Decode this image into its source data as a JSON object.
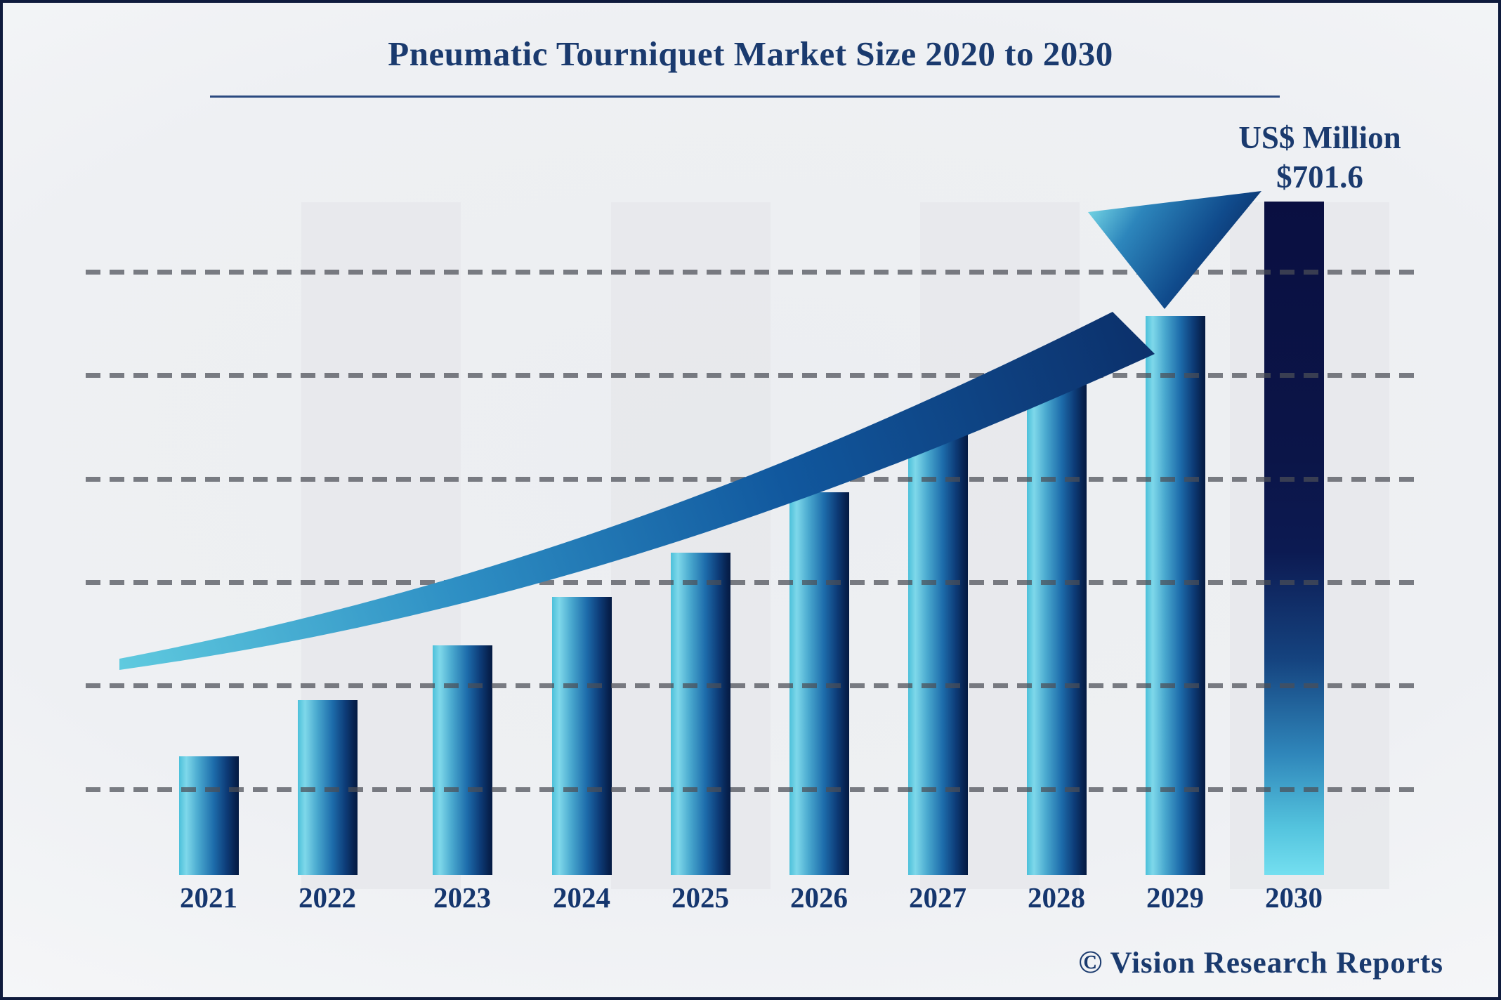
{
  "title": "Pneumatic Tourniquet Market Size 2020 to 2030",
  "annotation": {
    "unit": "US$ Million",
    "value": "$701.6"
  },
  "watermark": {
    "symbol": "©",
    "text": "Vision Research Reports"
  },
  "colors": {
    "navy_text": "#1a3a6e",
    "label_navy": "#15366e",
    "border_navy": "#0f1b3d",
    "rule_navy": "#2b4a80",
    "bar_cyan": "#7ed8ea",
    "bar_dark": "#041a42",
    "band_gray": "#e6e7eb",
    "grid_gray": "#9fa2a9",
    "arrow_tail_cyan": "#5fcadf",
    "arrow_head_navy": "#0a2458"
  },
  "chart_data": {
    "type": "bar",
    "title": "Pneumatic Tourniquet Market Size 2020 to 2030",
    "unit": "US$ Million",
    "categories": [
      "2021",
      "2022",
      "2023",
      "2024",
      "2025",
      "2026",
      "2027",
      "2028",
      "2029",
      "2030"
    ],
    "values": [
      124,
      182,
      239,
      290,
      336,
      399,
      461,
      514,
      582,
      701.6
    ],
    "labeled_points": {
      "2030": 701.6
    },
    "value_precision_note": "Only 2030 is labeled on the chart ($701.6); other values estimated from bar heights",
    "xlabel": "",
    "ylabel": "US$ Million",
    "ylim": [
      0,
      760
    ],
    "grid": "horizontal-dashed, 6 lines, unlabeled",
    "legend": "none",
    "annotations": [
      "US$ Million",
      "$701.6",
      "upward curved growth arrow from 2021 toward 2030"
    ]
  }
}
